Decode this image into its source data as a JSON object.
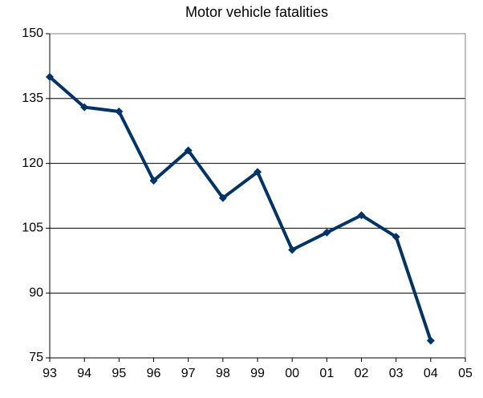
{
  "chart_data": {
    "type": "line",
    "title": "Motor vehicle fatalities",
    "categories": [
      "93",
      "94",
      "95",
      "96",
      "97",
      "98",
      "99",
      "00",
      "01",
      "02",
      "03",
      "04",
      "05"
    ],
    "series": [
      {
        "name": "Motor vehicle fatalities",
        "color": "#003366",
        "values": [
          140,
          133,
          132,
          116,
          123,
          112,
          118,
          100,
          104,
          108,
          103,
          79,
          null
        ]
      }
    ],
    "ylim": [
      75,
      150
    ],
    "yticks": [
      75,
      90,
      105,
      120,
      135,
      150
    ],
    "grid": true
  }
}
